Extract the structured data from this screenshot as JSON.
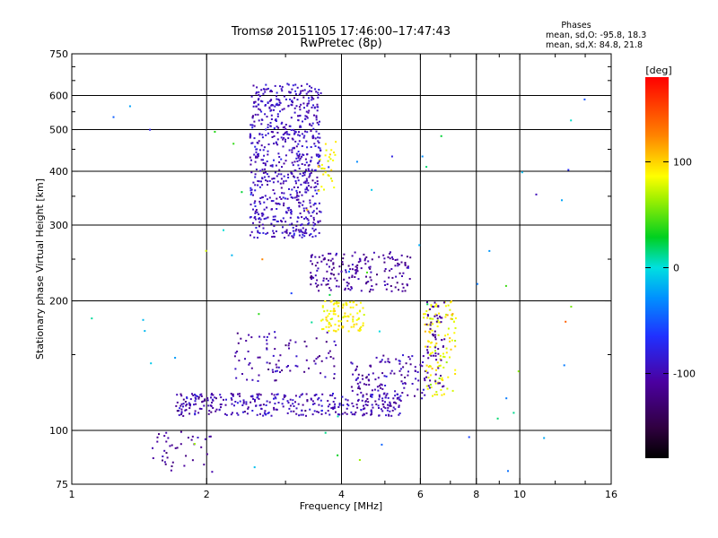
{
  "header": {
    "title_line1": "Tromsø 20151105 17:46:00–17:47:43",
    "title_line2": "RwPretec (8p)"
  },
  "phases_box": {
    "heading": "Phases",
    "line_o": "mean, sd,O: -95.8, 18.3",
    "line_x": "mean, sd,X:  84.8, 21.8"
  },
  "chart_data": {
    "type": "scatter",
    "xlabel": "Frequency [MHz]",
    "ylabel": "Stationary phase Virtual Height [km]",
    "xscale": "log",
    "yscale": "log",
    "xlim": [
      1,
      16
    ],
    "ylim": [
      75,
      750
    ],
    "xticks": [
      1,
      2,
      4,
      6,
      8,
      10,
      16
    ],
    "xtick_labels": [
      "1",
      "2",
      "4",
      "6",
      "8",
      "10",
      "16"
    ],
    "x_minor_ticks": [
      3,
      5,
      7,
      9,
      12,
      14
    ],
    "yticks": [
      75,
      100,
      200,
      300,
      400,
      500,
      600,
      750
    ],
    "ytick_labels": [
      "75",
      "100",
      "200",
      "300",
      "400",
      "500",
      "600",
      "750"
    ],
    "grid_x": [
      2,
      4,
      6,
      8,
      10
    ],
    "grid_y": [
      100,
      200,
      300,
      400,
      500,
      600
    ],
    "grid": true,
    "colorbar": {
      "label": "[deg]",
      "range": [
        -180,
        180
      ],
      "ticks": [
        -100,
        0,
        100
      ],
      "tick_labels": [
        "-100",
        "0",
        "100"
      ],
      "colormap": "rainbow"
    },
    "point_color_encoding": "phase [deg]",
    "clusters": [
      {
        "name": "o-mode F2 high trace",
        "f": [
          2.5,
          3.6
        ],
        "h": [
          280,
          640
        ],
        "phase_mean": -95,
        "phase_sd": 15,
        "count": 700
      },
      {
        "name": "x-mode F2 high trace",
        "f": [
          3.55,
          3.9
        ],
        "h": [
          360,
          470
        ],
        "phase_mean": 90,
        "phase_sd": 15,
        "count": 30
      },
      {
        "name": "F1 lower",
        "f": [
          1.7,
          5.5
        ],
        "h": [
          108,
          122
        ],
        "phase_mean": -100,
        "phase_sd": 20,
        "count": 350
      },
      {
        "name": "F1 rising",
        "f": [
          4.2,
          6.2
        ],
        "h": [
          118,
          150
        ],
        "phase_mean": -100,
        "phase_sd": 20,
        "count": 120
      },
      {
        "name": "x-mode 6-7 MHz trace",
        "f": [
          6.1,
          7.2
        ],
        "h": [
          120,
          200
        ],
        "phase_mean": 85,
        "phase_sd": 20,
        "count": 120
      },
      {
        "name": "o-mode 6-7 MHz trace",
        "f": [
          6.2,
          6.8
        ],
        "h": [
          125,
          200
        ],
        "phase_mean": -110,
        "phase_sd": 15,
        "count": 60
      },
      {
        "name": "E-region near 100-150 km",
        "f": [
          2.3,
          3.9
        ],
        "h": [
          130,
          170
        ],
        "phase_mean": -105,
        "phase_sd": 18,
        "count": 90
      },
      {
        "name": "F 210-260 km trace",
        "f": [
          3.4,
          5.7
        ],
        "h": [
          210,
          260
        ],
        "phase_mean": -110,
        "phase_sd": 18,
        "count": 180
      },
      {
        "name": "x-mode 180 km",
        "f": [
          3.6,
          4.5
        ],
        "h": [
          170,
          200
        ],
        "phase_mean": 90,
        "phase_sd": 15,
        "count": 100
      },
      {
        "name": "low-frequency spread",
        "f": [
          1.5,
          2.1
        ],
        "h": [
          80,
          100
        ],
        "phase_mean": -110,
        "phase_sd": 15,
        "count": 40
      },
      {
        "name": "sparse noise",
        "f": [
          1.1,
          14
        ],
        "h": [
          80,
          600
        ],
        "phase_mean": 0,
        "phase_sd": 90,
        "count": 60
      }
    ]
  }
}
